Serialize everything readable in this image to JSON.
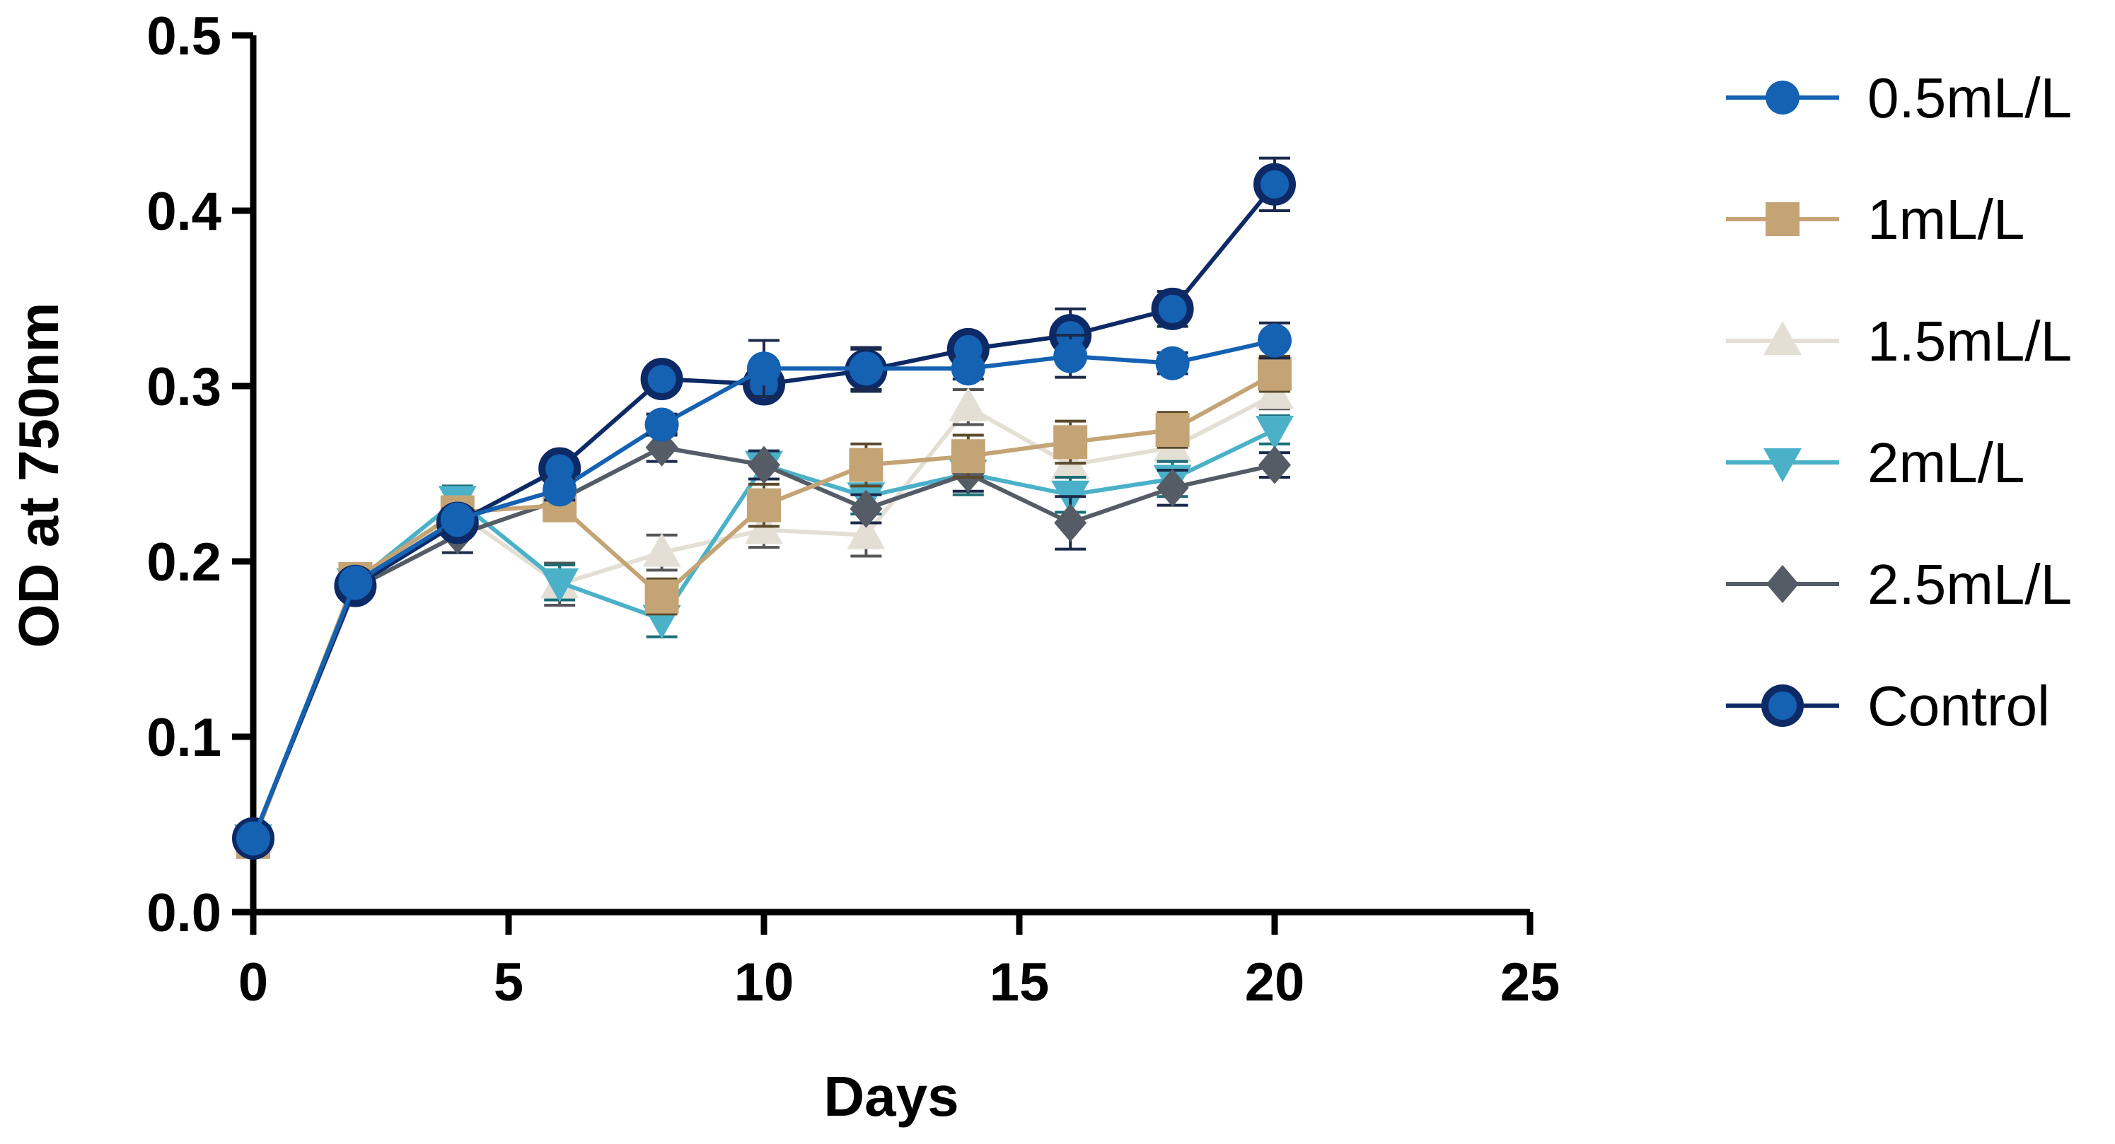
{
  "chart_data": {
    "type": "line",
    "title": "",
    "xlabel": "Days",
    "ylabel": "OD at 750nm",
    "xlim": [
      0,
      25
    ],
    "ylim": [
      0.0,
      0.5
    ],
    "x_ticks": [
      0,
      5,
      10,
      15,
      20,
      25
    ],
    "y_ticks": [
      0.0,
      0.1,
      0.2,
      0.3,
      0.4,
      0.5
    ],
    "x_tick_labels": [
      "0",
      "5",
      "10",
      "15",
      "20",
      "25"
    ],
    "y_tick_labels": [
      "0.0",
      "0.1",
      "0.2",
      "0.3",
      "0.4",
      "0.5"
    ],
    "grid": false,
    "legend_position": "right",
    "x": [
      0,
      2,
      4,
      6,
      8,
      10,
      12,
      14,
      16,
      18,
      20
    ],
    "series": [
      {
        "name": "1.5mL/L",
        "color": "#e3dfd5",
        "marker": "triangle-up",
        "values": [
          0.042,
          0.188,
          0.228,
          0.187,
          0.205,
          0.218,
          0.215,
          0.288,
          0.255,
          0.265,
          0.295
        ],
        "errors": [
          0.004,
          0.005,
          0.008,
          0.012,
          0.01,
          0.01,
          0.012,
          0.01,
          0.01,
          0.008,
          0.008
        ]
      },
      {
        "name": "2mL/L",
        "color": "#4bb1c9",
        "marker": "triangle-down",
        "values": [
          0.042,
          0.188,
          0.235,
          0.188,
          0.167,
          0.255,
          0.237,
          0.25,
          0.238,
          0.247,
          0.275
        ],
        "errors": [
          0.004,
          0.005,
          0.008,
          0.01,
          0.01,
          0.008,
          0.01,
          0.012,
          0.01,
          0.01,
          0.008
        ]
      },
      {
        "name": "2.5mL/L",
        "color": "#555c66",
        "marker": "diamond",
        "values": [
          0.042,
          0.185,
          0.215,
          0.235,
          0.265,
          0.255,
          0.23,
          0.25,
          0.222,
          0.242,
          0.255
        ],
        "errors": [
          0.004,
          0.005,
          0.01,
          0.008,
          0.008,
          0.008,
          0.008,
          0.01,
          0.015,
          0.01,
          0.007
        ]
      },
      {
        "name": "1mL/L",
        "color": "#c4a475",
        "marker": "square",
        "values": [
          0.04,
          0.19,
          0.228,
          0.232,
          0.18,
          0.232,
          0.255,
          0.26,
          0.268,
          0.275,
          0.307
        ],
        "errors": [
          0.004,
          0.005,
          0.008,
          0.008,
          0.01,
          0.012,
          0.012,
          0.012,
          0.012,
          0.01,
          0.01
        ]
      },
      {
        "name": "Control",
        "color": "#0d2a66",
        "marker": "circle-outlined",
        "values": [
          0.042,
          0.186,
          0.222,
          0.253,
          0.304,
          0.301,
          0.309,
          0.321,
          0.329,
          0.344,
          0.415
        ],
        "errors": [
          0.004,
          0.005,
          0.006,
          0.006,
          0.006,
          0.006,
          0.012,
          0.006,
          0.015,
          0.01,
          0.015
        ]
      },
      {
        "name": "0.5mL/L",
        "color": "#1561b2",
        "marker": "circle",
        "values": [
          0.042,
          0.188,
          0.224,
          0.241,
          0.278,
          0.31,
          0.31,
          0.31,
          0.317,
          0.313,
          0.326
        ],
        "errors": [
          0.004,
          0.005,
          0.006,
          0.006,
          0.006,
          0.016,
          0.012,
          0.006,
          0.012,
          0.006,
          0.01
        ]
      }
    ],
    "legend_order": [
      "0.5mL/L",
      "1mL/L",
      "1.5mL/L",
      "2mL/L",
      "2.5mL/L",
      "Control"
    ]
  }
}
